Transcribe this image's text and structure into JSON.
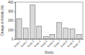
{
  "chart_data": {
    "type": "bar",
    "x_label": "Study",
    "y_label": "Change in Activity (%)",
    "categories": [
      "Study 1",
      "Study 2",
      "Study 3",
      "Study 4",
      "Study 5",
      "Study 6",
      "Study 7",
      "Study 8",
      "Study 9",
      "Study 10"
    ],
    "values": [
      220,
      120,
      370,
      140,
      25,
      50,
      180,
      120,
      110,
      50
    ],
    "color": "#d9d9d9",
    "ylim": [
      0,
      400
    ],
    "yticks": [
      0,
      100,
      200,
      300,
      400
    ],
    "grid": false
  }
}
